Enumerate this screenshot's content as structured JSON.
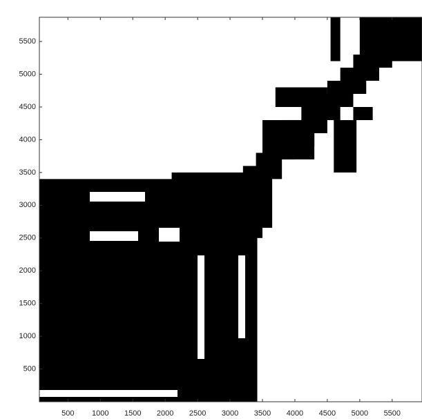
{
  "chart_data": {
    "type": "regions",
    "color": "#000000",
    "xlim": [
      60,
      5960
    ],
    "ylim": [
      0,
      5870
    ],
    "xticks": [
      500,
      1000,
      1500,
      2000,
      2500,
      3000,
      3500,
      4000,
      4500,
      5000,
      5500
    ],
    "yticks": [
      500,
      1000,
      1500,
      2000,
      2500,
      3000,
      3500,
      4000,
      4500,
      5000,
      5500
    ],
    "regions": [
      [
        60,
        2150,
        0,
        3400
      ],
      [
        2100,
        3420,
        0,
        3500
      ],
      [
        3200,
        3650,
        2500,
        3600
      ],
      [
        3400,
        3800,
        3400,
        3800
      ],
      [
        3600,
        4000,
        3700,
        4100
      ],
      [
        3800,
        4300,
        3900,
        4300
      ],
      [
        4100,
        4500,
        4100,
        4500
      ],
      [
        4300,
        4700,
        4300,
        4700
      ],
      [
        4500,
        4900,
        4500,
        4900
      ],
      [
        4700,
        5100,
        4700,
        5100
      ],
      [
        4900,
        5300,
        4900,
        5300
      ],
      [
        5100,
        5500,
        5100,
        5400
      ],
      [
        5000,
        5960,
        5200,
        5870
      ],
      [
        3700,
        4500,
        4500,
        4800
      ],
      [
        4550,
        4700,
        5200,
        5870
      ],
      [
        3500,
        4300,
        3700,
        4300
      ],
      [
        4600,
        4950,
        3500,
        4300
      ],
      [
        4900,
        5200,
        4300,
        4500
      ]
    ]
  }
}
